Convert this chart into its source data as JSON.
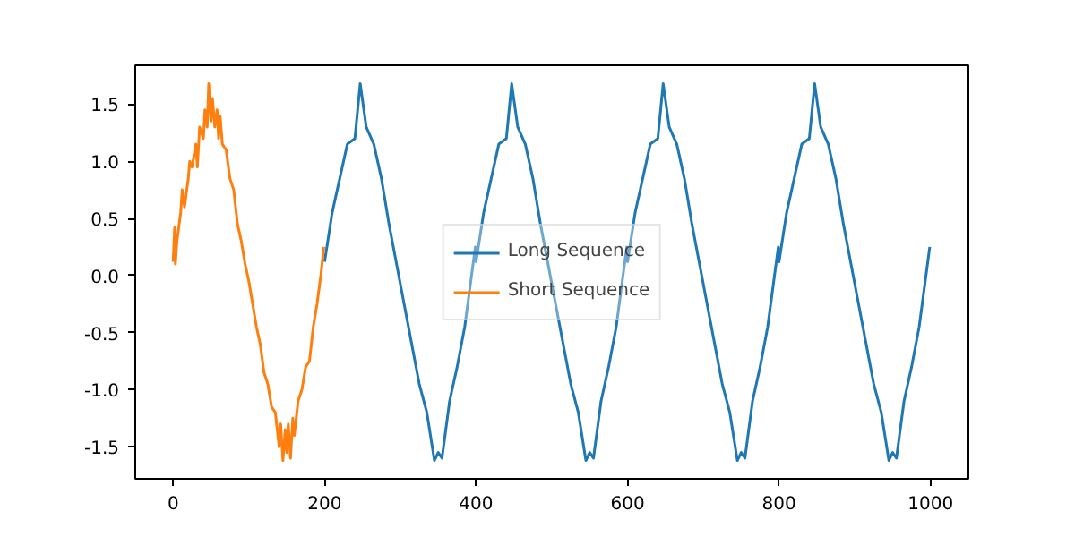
{
  "chart_data": {
    "type": "line",
    "xlim": [
      -50,
      1050
    ],
    "ylim": [
      -1.78,
      1.84
    ],
    "xticks": [
      0,
      200,
      400,
      600,
      800,
      1000
    ],
    "yticks": [
      -1.5,
      {
        "value": -1.0,
        "label": "-1.0"
      },
      -0.5,
      {
        "value": 0.0,
        "label": "0.0"
      },
      0.5,
      {
        "value": 1.0,
        "label": "1.0"
      },
      1.5
    ],
    "grid": false,
    "legend": "center",
    "marker": "none",
    "line_style": "solid",
    "series": [
      {
        "name": "Long Sequence",
        "color": "#1f77b4",
        "x": [
          200,
          210,
          220,
          230,
          240,
          247,
          255,
          265,
          275,
          285,
          295,
          305,
          315,
          325,
          335,
          345,
          350,
          355,
          365,
          375,
          385,
          399,
          400,
          410,
          420,
          430,
          440,
          447,
          455,
          465,
          475,
          485,
          495,
          505,
          515,
          525,
          535,
          545,
          550,
          555,
          565,
          575,
          585,
          599,
          600,
          610,
          620,
          630,
          640,
          647,
          655,
          665,
          675,
          685,
          695,
          705,
          715,
          725,
          735,
          745,
          750,
          755,
          765,
          775,
          785,
          799,
          800,
          810,
          820,
          830,
          840,
          847,
          855,
          865,
          875,
          885,
          895,
          905,
          915,
          925,
          935,
          945,
          950,
          955,
          965,
          975,
          985,
          999
        ],
        "values": [
          0.12,
          0.55,
          0.85,
          1.15,
          1.2,
          1.68,
          1.3,
          1.15,
          0.85,
          0.45,
          0.1,
          -0.25,
          -0.6,
          -0.95,
          -1.2,
          -1.62,
          -1.55,
          -1.6,
          -1.1,
          -0.8,
          -0.45,
          0.25,
          0.12,
          0.55,
          0.85,
          1.15,
          1.2,
          1.68,
          1.3,
          1.15,
          0.85,
          0.45,
          0.1,
          -0.25,
          -0.6,
          -0.95,
          -1.2,
          -1.62,
          -1.55,
          -1.6,
          -1.1,
          -0.8,
          -0.45,
          0.25,
          0.12,
          0.55,
          0.85,
          1.15,
          1.2,
          1.68,
          1.3,
          1.15,
          0.85,
          0.45,
          0.1,
          -0.25,
          -0.6,
          -0.95,
          -1.2,
          -1.62,
          -1.55,
          -1.6,
          -1.1,
          -0.8,
          -0.45,
          0.25,
          0.12,
          0.55,
          0.85,
          1.15,
          1.2,
          1.68,
          1.3,
          1.15,
          0.85,
          0.45,
          0.1,
          -0.25,
          -0.6,
          -0.95,
          -1.2,
          -1.62,
          -1.55,
          -1.6,
          -1.1,
          -0.8,
          -0.45,
          0.25
        ]
      },
      {
        "name": "Short Sequence",
        "color": "#ff7f0e",
        "x": [
          0,
          2,
          3,
          5,
          10,
          12,
          15,
          20,
          22,
          25,
          30,
          32,
          35,
          40,
          42,
          45,
          47,
          50,
          52,
          55,
          58,
          60,
          62,
          65,
          70,
          75,
          80,
          85,
          90,
          95,
          100,
          105,
          110,
          115,
          120,
          125,
          130,
          135,
          140,
          142,
          145,
          148,
          150,
          152,
          155,
          158,
          160,
          165,
          170,
          175,
          180,
          185,
          190,
          195,
          199
        ],
        "values": [
          0.12,
          0.42,
          0.1,
          0.3,
          0.55,
          0.75,
          0.6,
          0.85,
          1.0,
          0.95,
          1.15,
          0.95,
          1.3,
          1.2,
          1.45,
          1.3,
          1.68,
          1.35,
          1.55,
          1.3,
          1.45,
          1.2,
          1.4,
          1.15,
          1.1,
          0.85,
          0.75,
          0.45,
          0.3,
          0.1,
          -0.05,
          -0.25,
          -0.45,
          -0.6,
          -0.85,
          -0.95,
          -1.15,
          -1.2,
          -1.5,
          -1.3,
          -1.62,
          -1.35,
          -1.55,
          -1.3,
          -1.6,
          -1.25,
          -1.4,
          -1.1,
          -1.0,
          -0.8,
          -0.75,
          -0.45,
          -0.25,
          0.0,
          0.25
        ]
      }
    ]
  }
}
